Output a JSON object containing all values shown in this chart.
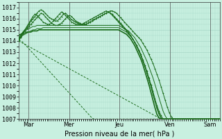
{
  "background_color": "#c8f0e0",
  "grid_color": "#a8d8c8",
  "line_color": "#1a6b1a",
  "ylim": [
    1007,
    1017.5
  ],
  "yticks": [
    1007,
    1008,
    1009,
    1010,
    1011,
    1012,
    1013,
    1014,
    1015,
    1016,
    1017
  ],
  "xlabel": "Pression niveau de la mer( hPa )",
  "day_labels": [
    "Mar",
    "Mer",
    "Jeu",
    "Ven",
    "Sam"
  ],
  "day_positions": [
    0.05,
    0.25,
    0.5,
    0.75,
    0.95
  ],
  "total_points": 100,
  "series": [
    {
      "style": "marker",
      "values": [
        1014.2,
        1014.5,
        1014.8,
        1015.0,
        1015.2,
        1015.5,
        1015.8,
        1016.0,
        1016.2,
        1016.5,
        1016.7,
        1016.8,
        1016.7,
        1016.5,
        1016.3,
        1016.1,
        1016.0,
        1015.9,
        1015.8,
        1015.8,
        1016.0,
        1016.2,
        1016.4,
        1016.5,
        1016.3,
        1016.1,
        1015.9,
        1015.8,
        1015.7,
        1015.6,
        1015.5,
        1015.5,
        1015.5,
        1015.5,
        1015.6,
        1015.7,
        1015.8,
        1015.9,
        1016.0,
        1016.1,
        1016.2,
        1016.3,
        1016.4,
        1016.5,
        1016.6,
        1016.7,
        1016.7,
        1016.6,
        1016.5,
        1016.3,
        1016.1,
        1015.9,
        1015.7,
        1015.5,
        1015.3,
        1015.1,
        1014.9,
        1014.7,
        1014.5,
        1014.3,
        1014.1,
        1013.8,
        1013.5,
        1013.2,
        1012.8,
        1012.4,
        1012.0,
        1011.5,
        1011.0,
        1010.5,
        1009.9,
        1009.3,
        1008.7,
        1008.1,
        1007.6,
        1007.2,
        1007.0,
        1007.0,
        1007.0,
        1007.0,
        1007.0,
        1007.0,
        1007.0,
        1007.0,
        1007.0,
        1007.0,
        1007.0,
        1007.0,
        1007.0,
        1007.0,
        1007.0,
        1007.0,
        1007.0,
        1007.0,
        1007.0,
        1007.0,
        1007.0,
        1007.0,
        1007.0,
        1007.0
      ]
    },
    {
      "style": "marker",
      "values": [
        1014.1,
        1014.4,
        1014.7,
        1015.0,
        1015.3,
        1015.6,
        1015.9,
        1016.2,
        1016.4,
        1016.3,
        1016.1,
        1015.9,
        1015.7,
        1015.6,
        1015.5,
        1015.5,
        1015.6,
        1015.8,
        1016.0,
        1016.2,
        1016.4,
        1016.6,
        1016.5,
        1016.3,
        1016.1,
        1015.9,
        1015.7,
        1015.6,
        1015.5,
        1015.5,
        1015.5,
        1015.5,
        1015.6,
        1015.7,
        1015.8,
        1015.9,
        1016.0,
        1016.1,
        1016.2,
        1016.3,
        1016.4,
        1016.5,
        1016.6,
        1016.7,
        1016.6,
        1016.5,
        1016.3,
        1016.1,
        1015.9,
        1015.7,
        1015.5,
        1015.3,
        1015.1,
        1014.9,
        1014.7,
        1014.5,
        1014.2,
        1013.9,
        1013.6,
        1013.2,
        1012.8,
        1012.3,
        1011.8,
        1011.3,
        1010.7,
        1010.1,
        1009.5,
        1008.8,
        1008.2,
        1007.7,
        1007.3,
        1007.0,
        1007.0,
        1007.0,
        1007.0,
        1007.0,
        1007.0,
        1007.0,
        1007.0,
        1007.0,
        1007.0,
        1007.0,
        1007.0,
        1007.0,
        1007.0,
        1007.0,
        1007.0,
        1007.0,
        1007.0,
        1007.0,
        1007.0,
        1007.0,
        1007.0,
        1007.0,
        1007.0,
        1007.0,
        1007.0,
        1007.0,
        1007.0,
        1007.0
      ]
    },
    {
      "style": "marker",
      "values": [
        1014.0,
        1014.3,
        1014.6,
        1014.9,
        1015.1,
        1015.3,
        1015.5,
        1015.7,
        1015.9,
        1016.1,
        1016.3,
        1016.5,
        1016.4,
        1016.2,
        1016.0,
        1015.8,
        1015.6,
        1015.5,
        1015.4,
        1015.4,
        1015.5,
        1015.6,
        1015.8,
        1016.0,
        1016.2,
        1016.3,
        1016.2,
        1016.0,
        1015.8,
        1015.7,
        1015.6,
        1015.5,
        1015.5,
        1015.5,
        1015.6,
        1015.7,
        1015.8,
        1015.9,
        1016.0,
        1016.1,
        1016.2,
        1016.3,
        1016.4,
        1016.5,
        1016.6,
        1016.5,
        1016.4,
        1016.2,
        1016.0,
        1015.8,
        1015.6,
        1015.4,
        1015.2,
        1015.0,
        1014.8,
        1014.5,
        1014.2,
        1013.9,
        1013.5,
        1013.1,
        1012.7,
        1012.2,
        1011.7,
        1011.1,
        1010.5,
        1009.9,
        1009.2,
        1008.6,
        1008.0,
        1007.5,
        1007.1,
        1007.0,
        1007.0,
        1007.0,
        1007.0,
        1007.0,
        1007.0,
        1007.0,
        1007.0,
        1007.0,
        1007.0,
        1007.0,
        1007.0,
        1007.0,
        1007.0,
        1007.0,
        1007.0,
        1007.0,
        1007.0,
        1007.0,
        1007.0,
        1007.0,
        1007.0,
        1007.0,
        1007.0,
        1007.0,
        1007.0,
        1007.0,
        1007.0,
        1007.0
      ]
    },
    {
      "style": "solid",
      "values": [
        1014.3,
        1014.5,
        1014.7,
        1014.9,
        1015.0,
        1015.1,
        1015.2,
        1015.3,
        1015.3,
        1015.4,
        1015.4,
        1015.4,
        1015.4,
        1015.4,
        1015.4,
        1015.4,
        1015.4,
        1015.4,
        1015.4,
        1015.4,
        1015.4,
        1015.4,
        1015.4,
        1015.4,
        1015.4,
        1015.4,
        1015.4,
        1015.4,
        1015.4,
        1015.4,
        1015.4,
        1015.4,
        1015.4,
        1015.4,
        1015.4,
        1015.4,
        1015.4,
        1015.4,
        1015.4,
        1015.4,
        1015.4,
        1015.4,
        1015.4,
        1015.4,
        1015.4,
        1015.4,
        1015.4,
        1015.4,
        1015.4,
        1015.4,
        1015.3,
        1015.2,
        1015.1,
        1015.0,
        1014.9,
        1014.7,
        1014.5,
        1014.3,
        1014.0,
        1013.7,
        1013.4,
        1013.0,
        1012.6,
        1012.2,
        1011.7,
        1011.2,
        1010.7,
        1010.1,
        1009.5,
        1008.9,
        1008.3,
        1007.7,
        1007.3,
        1007.0,
        1007.0,
        1007.0,
        1007.0,
        1007.0,
        1007.0,
        1007.0,
        1007.0,
        1007.0,
        1007.0,
        1007.0,
        1007.0,
        1007.0,
        1007.0,
        1007.0,
        1007.0,
        1007.0,
        1007.0,
        1007.0,
        1007.0,
        1007.0,
        1007.0,
        1007.0,
        1007.0,
        1007.0,
        1007.0,
        1007.0
      ]
    },
    {
      "style": "solid",
      "values": [
        1014.2,
        1014.3,
        1014.5,
        1014.6,
        1014.7,
        1014.8,
        1014.9,
        1015.0,
        1015.0,
        1015.1,
        1015.1,
        1015.1,
        1015.2,
        1015.2,
        1015.2,
        1015.2,
        1015.2,
        1015.2,
        1015.2,
        1015.2,
        1015.2,
        1015.2,
        1015.2,
        1015.2,
        1015.2,
        1015.2,
        1015.2,
        1015.2,
        1015.2,
        1015.2,
        1015.2,
        1015.2,
        1015.2,
        1015.2,
        1015.2,
        1015.2,
        1015.2,
        1015.2,
        1015.2,
        1015.2,
        1015.2,
        1015.2,
        1015.2,
        1015.2,
        1015.2,
        1015.2,
        1015.2,
        1015.2,
        1015.2,
        1015.2,
        1015.1,
        1015.0,
        1014.9,
        1014.8,
        1014.6,
        1014.4,
        1014.2,
        1013.9,
        1013.6,
        1013.2,
        1012.8,
        1012.3,
        1011.8,
        1011.2,
        1010.6,
        1010.0,
        1009.3,
        1008.6,
        1007.9,
        1007.4,
        1007.1,
        1007.0,
        1007.0,
        1007.0,
        1007.0,
        1007.0,
        1007.0,
        1007.0,
        1007.0,
        1007.0,
        1007.0,
        1007.0,
        1007.0,
        1007.0,
        1007.0,
        1007.0,
        1007.0,
        1007.0,
        1007.0,
        1007.0,
        1007.0,
        1007.0,
        1007.0,
        1007.0,
        1007.0,
        1007.0,
        1007.0,
        1007.0,
        1007.0,
        1007.0
      ]
    },
    {
      "style": "solid_thick",
      "values": [
        1014.5,
        1014.6,
        1014.7,
        1014.7,
        1014.8,
        1014.8,
        1014.8,
        1014.9,
        1014.9,
        1014.9,
        1015.0,
        1015.0,
        1015.0,
        1015.0,
        1015.0,
        1015.0,
        1015.0,
        1015.0,
        1015.0,
        1015.0,
        1015.0,
        1015.0,
        1015.0,
        1015.0,
        1015.0,
        1015.0,
        1015.0,
        1015.0,
        1015.0,
        1015.0,
        1015.0,
        1015.0,
        1015.0,
        1015.0,
        1015.0,
        1015.0,
        1015.0,
        1015.0,
        1015.0,
        1015.0,
        1015.0,
        1015.0,
        1015.0,
        1015.0,
        1015.0,
        1015.0,
        1015.0,
        1015.0,
        1015.0,
        1015.0,
        1014.9,
        1014.8,
        1014.7,
        1014.6,
        1014.4,
        1014.2,
        1013.9,
        1013.6,
        1013.2,
        1012.8,
        1012.4,
        1011.9,
        1011.3,
        1010.7,
        1010.1,
        1009.4,
        1008.7,
        1008.0,
        1007.4,
        1007.1,
        1007.0,
        1007.0,
        1007.0,
        1007.0,
        1007.0,
        1007.0,
        1007.0,
        1007.0,
        1007.0,
        1007.0,
        1007.0,
        1007.0,
        1007.0,
        1007.0,
        1007.0,
        1007.0,
        1007.0,
        1007.0,
        1007.0,
        1007.0,
        1007.0,
        1007.0,
        1007.0,
        1007.0,
        1007.0,
        1007.0,
        1007.0,
        1007.0,
        1007.0,
        1007.0
      ]
    },
    {
      "style": "dashed",
      "values": [
        1014.0,
        1013.9,
        1013.8,
        1013.7,
        1013.6,
        1013.5,
        1013.4,
        1013.3,
        1013.2,
        1013.1,
        1013.0,
        1012.9,
        1012.8,
        1012.7,
        1012.6,
        1012.5,
        1012.4,
        1012.3,
        1012.2,
        1012.1,
        1012.0,
        1011.9,
        1011.8,
        1011.7,
        1011.6,
        1011.5,
        1011.4,
        1011.3,
        1011.2,
        1011.1,
        1011.0,
        1010.9,
        1010.8,
        1010.7,
        1010.6,
        1010.5,
        1010.4,
        1010.3,
        1010.2,
        1010.1,
        1010.0,
        1009.9,
        1009.8,
        1009.7,
        1009.6,
        1009.5,
        1009.4,
        1009.3,
        1009.2,
        1009.1,
        1009.0,
        1008.9,
        1008.8,
        1008.7,
        1008.6,
        1008.5,
        1008.4,
        1008.3,
        1008.2,
        1008.1,
        1008.0,
        1007.9,
        1007.8,
        1007.7,
        1007.6,
        1007.5,
        1007.4,
        1007.3,
        1007.2,
        1007.1,
        1007.0,
        1007.0,
        1007.0,
        1007.0,
        1007.0,
        1007.0,
        1007.0,
        1007.0,
        1007.0,
        1007.0,
        1007.0,
        1007.0,
        1007.0,
        1007.0,
        1007.0,
        1007.0,
        1007.0,
        1007.0,
        1007.0,
        1007.0,
        1007.0,
        1007.0,
        1007.0,
        1007.0,
        1007.0,
        1007.0,
        1007.0,
        1007.0,
        1007.0,
        1007.0
      ]
    },
    {
      "style": "dashed",
      "values": [
        1014.1,
        1014.0,
        1013.9,
        1013.7,
        1013.5,
        1013.3,
        1013.1,
        1012.9,
        1012.7,
        1012.5,
        1012.3,
        1012.1,
        1011.9,
        1011.7,
        1011.5,
        1011.3,
        1011.1,
        1010.9,
        1010.7,
        1010.5,
        1010.3,
        1010.1,
        1009.9,
        1009.7,
        1009.5,
        1009.3,
        1009.1,
        1008.9,
        1008.7,
        1008.5,
        1008.3,
        1008.1,
        1007.9,
        1007.7,
        1007.5,
        1007.3,
        1007.1,
        1007.0,
        1007.0,
        1007.0,
        1007.0,
        1007.0,
        1007.0,
        1007.0,
        1007.0,
        1007.0,
        1007.0,
        1007.0,
        1007.0,
        1007.0,
        1007.0,
        1007.0,
        1007.0,
        1007.0,
        1007.0,
        1007.0,
        1007.0,
        1007.0,
        1007.0,
        1007.0,
        1007.0,
        1007.0,
        1007.0,
        1007.0,
        1007.0,
        1007.0,
        1007.0,
        1007.0,
        1007.0,
        1007.0,
        1007.0,
        1007.0,
        1007.0,
        1007.0,
        1007.0,
        1007.0,
        1007.0,
        1007.0,
        1007.0,
        1007.0,
        1007.0,
        1007.0,
        1007.0,
        1007.0,
        1007.0,
        1007.0,
        1007.0,
        1007.0,
        1007.0,
        1007.0,
        1007.0,
        1007.0,
        1007.0,
        1007.0,
        1007.0,
        1007.0,
        1007.0,
        1007.0,
        1007.0,
        1007.0
      ]
    }
  ],
  "tick_fontsize": 6,
  "xlabel_fontsize": 7,
  "figsize": [
    3.2,
    2.0
  ],
  "dpi": 100
}
